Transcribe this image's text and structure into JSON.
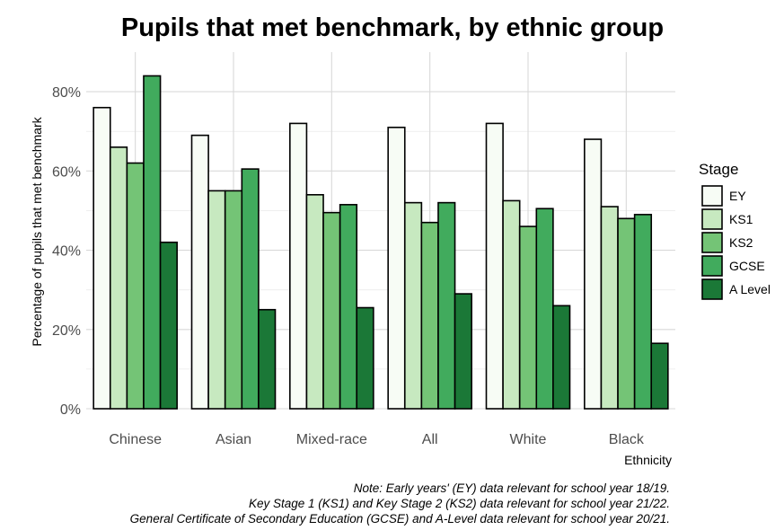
{
  "chart_data": {
    "type": "bar",
    "title": "Pupils that met benchmark, by ethnic group",
    "xlabel": "Ethnicity",
    "ylabel": "Percentage of pupils that met benchmark",
    "categories": [
      "Chinese",
      "Asian",
      "Mixed-race",
      "All",
      "White",
      "Black"
    ],
    "y_ticks": [
      "0%",
      "20%",
      "40%",
      "60%",
      "80%"
    ],
    "ylim": [
      0,
      90
    ],
    "grid": true,
    "legend_title": "Stage",
    "legend_position": "right",
    "series": [
      {
        "name": "EY",
        "color": "#f7fcf5",
        "values": [
          76,
          69,
          72,
          71,
          72,
          68
        ]
      },
      {
        "name": "KS1",
        "color": "#c7e9c0",
        "values": [
          66,
          55,
          54,
          52,
          52.5,
          51
        ]
      },
      {
        "name": "KS2",
        "color": "#74c476",
        "values": [
          62,
          55,
          49.5,
          47,
          46,
          48
        ]
      },
      {
        "name": "GCSE",
        "color": "#41ab5d",
        "values": [
          84,
          60.5,
          51.5,
          52,
          50.5,
          49
        ]
      },
      {
        "name": "A Level",
        "color": "#1b7837",
        "values": [
          42,
          25,
          25.5,
          29,
          26,
          16.5
        ]
      }
    ],
    "notes": [
      "Note: Early years' (EY) data relevant for school year 18/19.",
      "Key Stage 1 (KS1) and Key Stage 2 (KS2) data relevant for school year 21/22.",
      "General Certificate of Secondary Education (GCSE) and A-Level data relevant for school year 20/21."
    ]
  }
}
